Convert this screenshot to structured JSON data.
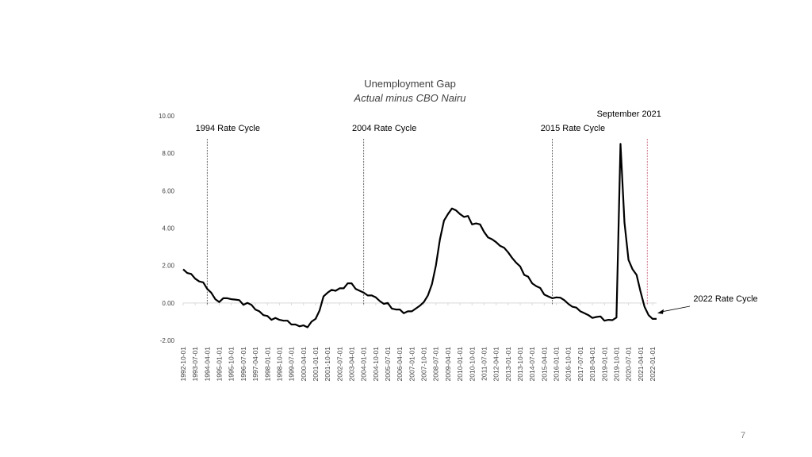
{
  "page_number": "7",
  "chart_data": {
    "type": "line",
    "title": "Unemployment Gap",
    "subtitle": "Actual minus CBO Nairu",
    "xlabel": "",
    "ylabel": "",
    "ylim": [
      -2,
      10
    ],
    "y_ticks": [
      "10.00",
      "8.00",
      "6.00",
      "4.00",
      "2.00",
      "0.00",
      "-2.00"
    ],
    "y_tick_values": [
      10,
      8,
      6,
      4,
      2,
      0,
      -2
    ],
    "x_tick_labels": [
      "1992-10-01",
      "1993-07-01",
      "1994-04-01",
      "1995-01-01",
      "1995-10-01",
      "1996-07-01",
      "1997-04-01",
      "1998-01-01",
      "1998-10-01",
      "1999-07-01",
      "2000-04-01",
      "2001-01-01",
      "2001-10-01",
      "2002-07-01",
      "2003-04-01",
      "2004-01-01",
      "2004-10-01",
      "2005-07-01",
      "2006-04-01",
      "2007-01-01",
      "2007-10-01",
      "2008-07-01",
      "2009-04-01",
      "2010-01-01",
      "2010-10-01",
      "2011-07-01",
      "2012-04-01",
      "2013-01-01",
      "2013-10-01",
      "2014-07-01",
      "2015-04-01",
      "2016-01-01",
      "2016-10-01",
      "2017-07-01",
      "2018-04-01",
      "2019-01-01",
      "2019-10-01",
      "2020-07-01",
      "2021-04-01",
      "2022-01-01"
    ],
    "x_start": "1992-10-01",
    "x_end": "2022-04-01",
    "grid": false,
    "legend": "none",
    "series": [
      {
        "color": "#000000",
        "x": [
          "1992-10-01",
          "1993-01-01",
          "1993-04-01",
          "1993-07-01",
          "1993-10-01",
          "1994-01-01",
          "1994-04-01",
          "1994-07-01",
          "1994-10-01",
          "1995-01-01",
          "1995-04-01",
          "1995-07-01",
          "1995-10-01",
          "1996-01-01",
          "1996-04-01",
          "1996-07-01",
          "1996-10-01",
          "1997-01-01",
          "1997-04-01",
          "1997-07-01",
          "1997-10-01",
          "1998-01-01",
          "1998-04-01",
          "1998-07-01",
          "1998-10-01",
          "1999-01-01",
          "1999-04-01",
          "1999-07-01",
          "1999-10-01",
          "2000-01-01",
          "2000-04-01",
          "2000-07-01",
          "2000-10-01",
          "2001-01-01",
          "2001-04-01",
          "2001-07-01",
          "2001-10-01",
          "2002-01-01",
          "2002-04-01",
          "2002-07-01",
          "2002-10-01",
          "2003-01-01",
          "2003-04-01",
          "2003-07-01",
          "2003-10-01",
          "2004-01-01",
          "2004-04-01",
          "2004-07-01",
          "2004-10-01",
          "2005-01-01",
          "2005-04-01",
          "2005-07-01",
          "2005-10-01",
          "2006-01-01",
          "2006-04-01",
          "2006-07-01",
          "2006-10-01",
          "2007-01-01",
          "2007-04-01",
          "2007-07-01",
          "2007-10-01",
          "2008-01-01",
          "2008-04-01",
          "2008-07-01",
          "2008-10-01",
          "2009-01-01",
          "2009-04-01",
          "2009-07-01",
          "2009-10-01",
          "2010-01-01",
          "2010-04-01",
          "2010-07-01",
          "2010-10-01",
          "2011-01-01",
          "2011-04-01",
          "2011-07-01",
          "2011-10-01",
          "2012-01-01",
          "2012-04-01",
          "2012-07-01",
          "2012-10-01",
          "2013-01-01",
          "2013-04-01",
          "2013-07-01",
          "2013-10-01",
          "2014-01-01",
          "2014-04-01",
          "2014-07-01",
          "2014-10-01",
          "2015-01-01",
          "2015-04-01",
          "2015-07-01",
          "2015-10-01",
          "2016-01-01",
          "2016-04-01",
          "2016-07-01",
          "2016-10-01",
          "2017-01-01",
          "2017-04-01",
          "2017-07-01",
          "2017-10-01",
          "2018-01-01",
          "2018-04-01",
          "2018-07-01",
          "2018-10-01",
          "2019-01-01",
          "2019-04-01",
          "2019-07-01",
          "2019-10-01",
          "2020-01-01",
          "2020-04-01",
          "2020-07-01",
          "2020-10-01",
          "2021-01-01",
          "2021-04-01",
          "2021-07-01",
          "2021-10-01",
          "2022-01-01",
          "2022-04-01"
        ],
        "values": [
          1.8,
          1.6,
          1.55,
          1.3,
          1.15,
          1.1,
          0.75,
          0.55,
          0.2,
          0.05,
          0.25,
          0.25,
          0.2,
          0.18,
          0.15,
          -0.1,
          0.0,
          -0.1,
          -0.35,
          -0.45,
          -0.65,
          -0.7,
          -0.9,
          -0.8,
          -0.9,
          -0.95,
          -0.95,
          -1.15,
          -1.15,
          -1.25,
          -1.2,
          -1.3,
          -1.0,
          -0.85,
          -0.4,
          0.35,
          0.55,
          0.7,
          0.65,
          0.78,
          0.78,
          1.05,
          1.05,
          0.75,
          0.65,
          0.55,
          0.4,
          0.4,
          0.3,
          0.1,
          -0.05,
          0.0,
          -0.3,
          -0.35,
          -0.35,
          -0.55,
          -0.45,
          -0.45,
          -0.3,
          -0.15,
          0.05,
          0.4,
          1.0,
          2.0,
          3.4,
          4.4,
          4.75,
          5.05,
          4.95,
          4.75,
          4.6,
          4.65,
          4.2,
          4.25,
          4.2,
          3.8,
          3.5,
          3.4,
          3.25,
          3.05,
          2.95,
          2.7,
          2.4,
          2.15,
          1.95,
          1.5,
          1.4,
          1.05,
          0.9,
          0.8,
          0.45,
          0.35,
          0.25,
          0.3,
          0.28,
          0.15,
          -0.05,
          -0.2,
          -0.25,
          -0.45,
          -0.55,
          -0.65,
          -0.8,
          -0.75,
          -0.72,
          -0.95,
          -0.9,
          -0.92,
          -0.78,
          8.5,
          4.3,
          2.3,
          1.8,
          1.5,
          0.6,
          -0.2,
          -0.65,
          -0.85,
          -0.85
        ]
      }
    ],
    "vlines": [
      {
        "x": "1994-04-01",
        "label": "1994 Rate Cycle",
        "color": "#404040"
      },
      {
        "x": "2004-01-01",
        "label": "2004  Rate Cycle",
        "color": "#404040"
      },
      {
        "x": "2015-10-01",
        "label": "2015  Rate Cycle",
        "color": "#404040"
      },
      {
        "x": "2021-09-01",
        "label": "September 2021",
        "color": "#c0506a"
      }
    ],
    "annotations": [
      {
        "text": "2022  Rate Cycle",
        "x": "2022-04-01",
        "y": -0.5
      }
    ]
  }
}
